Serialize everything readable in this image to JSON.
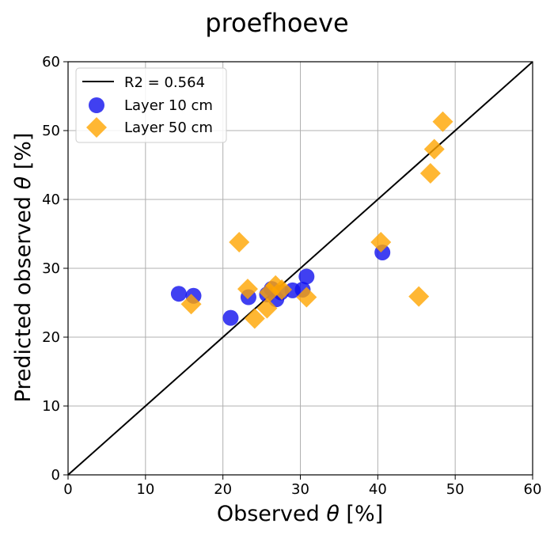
{
  "chart_data": {
    "type": "scatter",
    "title": "proefhoeve",
    "xlabel_prefix": "Observed ",
    "xlabel_symbol": "θ",
    "xlabel_suffix": " [%]",
    "ylabel_prefix": "Predicted observed ",
    "ylabel_symbol": "θ",
    "ylabel_suffix": " [%]",
    "xlim": [
      0,
      60
    ],
    "ylim": [
      0,
      60
    ],
    "xticks": [
      0,
      10,
      20,
      30,
      40,
      50,
      60
    ],
    "yticks": [
      0,
      10,
      20,
      30,
      40,
      50,
      60
    ],
    "grid": true,
    "legend_position": "top-left",
    "reference_line": {
      "label": "R2 = 0.564",
      "points": [
        [
          0,
          0
        ],
        [
          60,
          60
        ]
      ],
      "color": "#000000"
    },
    "series": [
      {
        "name": "Layer 10 cm",
        "marker": "circle",
        "color": "#1010ee",
        "points": [
          [
            14.3,
            26.3
          ],
          [
            16.2,
            26.0
          ],
          [
            21.0,
            22.8
          ],
          [
            23.3,
            25.8
          ],
          [
            25.7,
            26.2
          ],
          [
            26.3,
            27.0
          ],
          [
            26.9,
            25.5
          ],
          [
            27.5,
            26.5
          ],
          [
            29.0,
            26.8
          ],
          [
            30.3,
            26.9
          ],
          [
            30.8,
            28.8
          ],
          [
            40.6,
            32.3
          ]
        ]
      },
      {
        "name": "Layer 50 cm",
        "marker": "diamond",
        "color": "#ffa500",
        "points": [
          [
            15.9,
            24.8
          ],
          [
            22.1,
            33.8
          ],
          [
            23.2,
            27.0
          ],
          [
            24.1,
            22.7
          ],
          [
            25.7,
            24.2
          ],
          [
            26.0,
            26.5
          ],
          [
            26.8,
            27.5
          ],
          [
            27.6,
            26.9
          ],
          [
            30.8,
            25.8
          ],
          [
            40.4,
            33.8
          ],
          [
            45.3,
            25.9
          ],
          [
            46.8,
            43.8
          ],
          [
            47.3,
            47.3
          ],
          [
            48.4,
            51.3
          ]
        ]
      }
    ]
  }
}
